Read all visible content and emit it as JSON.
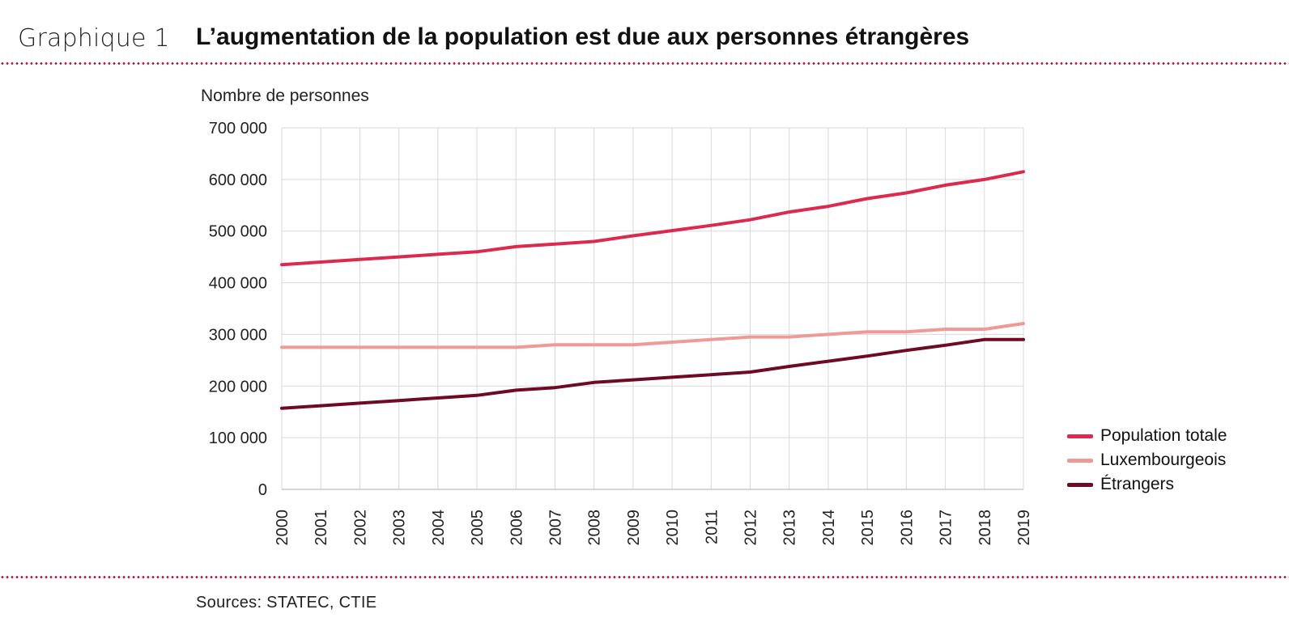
{
  "header": {
    "label": "Graphique 1",
    "title": "L’augmentation de la population est due aux personnes étrangères"
  },
  "source": "Sources: STATEC, CTIE",
  "colors": {
    "dots": "#b3133b",
    "grid": "#d9d9d9"
  },
  "chart_data": {
    "type": "line",
    "ylabel": "Nombre de personnes",
    "x": [
      "2000",
      "2001",
      "2002",
      "2003",
      "2004",
      "2005",
      "2006",
      "2007",
      "2008",
      "2009",
      "2010",
      "2011",
      "2012",
      "2013",
      "2014",
      "2015",
      "2016",
      "2017",
      "2018",
      "2019"
    ],
    "ylim": [
      0,
      700000
    ],
    "yticks": [
      "0",
      "100 000",
      "200 000",
      "300 000",
      "400 000",
      "500 000",
      "600 000",
      "700 000"
    ],
    "grid": true,
    "legend_position": "right",
    "series": [
      {
        "name": "Population totale",
        "color": "#dc2a4f",
        "values": [
          435000,
          440000,
          445000,
          450000,
          455000,
          460000,
          470000,
          475000,
          480000,
          491000,
          501000,
          511000,
          522000,
          537000,
          548000,
          563000,
          574000,
          589000,
          600000,
          615000
        ]
      },
      {
        "name": "Luxembourgeois",
        "color": "#ee9a97",
        "values": [
          275000,
          275000,
          275000,
          275000,
          275000,
          275000,
          275000,
          280000,
          280000,
          280000,
          285000,
          290000,
          295000,
          295000,
          300000,
          305000,
          305000,
          310000,
          310000,
          321000
        ]
      },
      {
        "name": "Étrangers",
        "color": "#6d0a24",
        "values": [
          157000,
          162000,
          167000,
          172000,
          177000,
          182000,
          192000,
          197000,
          207000,
          212000,
          217000,
          222000,
          227000,
          238000,
          248000,
          258000,
          269000,
          279000,
          290000,
          290000
        ]
      }
    ]
  }
}
